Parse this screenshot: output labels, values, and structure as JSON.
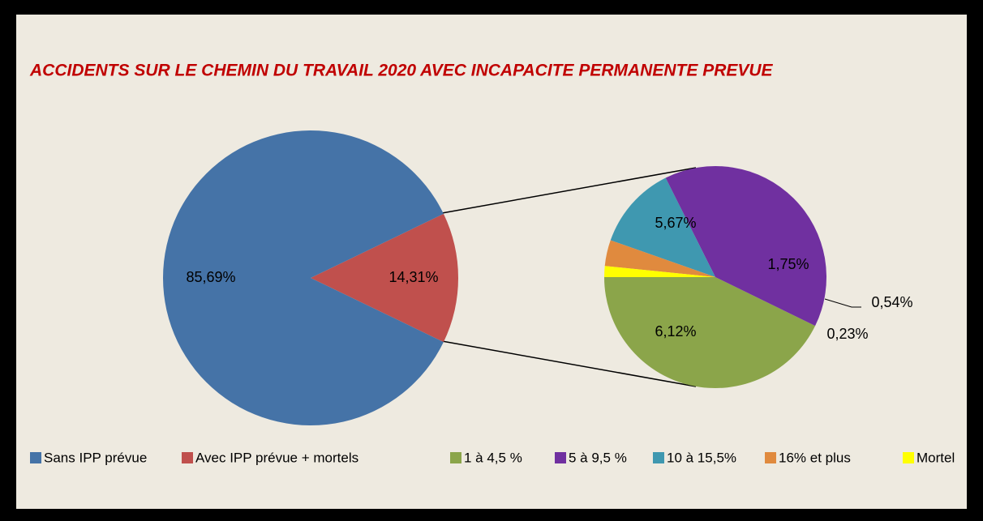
{
  "chart_data": [
    {
      "type": "pie",
      "title": "ACCIDENTS SUR LE CHEMIN DU TRAVAIL 2020 AVEC INCAPACITE PERMANENTE PREVUE",
      "categories": [
        "Sans IPP prévue",
        "Avec IPP prévue + mortels"
      ],
      "values": [
        85.69,
        14.31
      ],
      "value_labels": [
        "85,69%",
        "14,31%"
      ],
      "colors": [
        "#4573a7",
        "#c0504d"
      ]
    },
    {
      "type": "pie",
      "categories": [
        "1 à 4,5 %",
        "5 à 9,5 %",
        "10 à 15,5%",
        "16% et plus",
        "Mortel"
      ],
      "values": [
        6.12,
        5.67,
        1.75,
        0.54,
        0.23
      ],
      "value_labels": [
        "6,12%",
        "5,67%",
        "1,75%",
        "0,54%",
        "0,23%"
      ],
      "colors": [
        "#8ba54a",
        "#7030a0",
        "#3f98b0",
        "#e08a3e",
        "#ffff00"
      ]
    }
  ]
}
